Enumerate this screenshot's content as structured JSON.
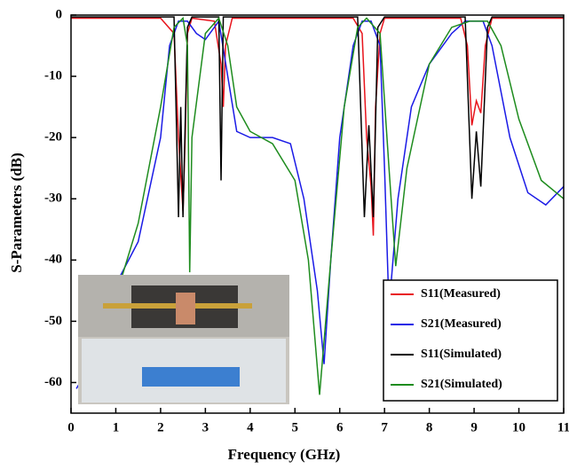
{
  "chart_data": {
    "type": "line",
    "xlabel": "Frequency (GHz)",
    "ylabel": "S-Parameters (dB)",
    "xlim": [
      0,
      11
    ],
    "xticks": [
      0,
      1,
      2,
      3,
      4,
      5,
      6,
      7,
      8,
      9,
      10,
      11
    ],
    "ylim": [
      -65,
      0
    ],
    "yticks": [
      0,
      -10,
      -20,
      -30,
      -40,
      -50,
      -60
    ],
    "grid": false,
    "legend": "lower right",
    "series": [
      {
        "name": "S11(Measured)",
        "color": "#e8141c",
        "x": [
          0,
          2.0,
          2.3,
          2.4,
          2.5,
          2.55,
          2.6,
          2.7,
          3.2,
          3.35,
          3.4,
          3.45,
          3.6,
          6.3,
          6.5,
          6.6,
          6.7,
          6.75,
          6.8,
          6.9,
          7.0,
          8.7,
          8.85,
          8.95,
          9.05,
          9.15,
          9.25,
          9.4,
          11
        ],
        "values": [
          -0.5,
          -0.5,
          -3,
          -20,
          -32,
          -20,
          -3,
          -0.5,
          -1,
          -8,
          -15,
          -5,
          -0.5,
          -0.5,
          -3,
          -20,
          -28,
          -36,
          -15,
          -3,
          -0.5,
          -0.5,
          -5,
          -18,
          -14,
          -16,
          -5,
          -0.5,
          -0.5
        ]
      },
      {
        "name": "S21(Measured)",
        "color": "#1a1ae6",
        "x": [
          0.12,
          0.2,
          0.5,
          1.0,
          1.5,
          2.0,
          2.2,
          2.4,
          2.6,
          2.8,
          3.0,
          3.3,
          3.5,
          3.7,
          4.0,
          4.5,
          4.9,
          5.2,
          5.5,
          5.65,
          5.8,
          6.0,
          6.3,
          6.5,
          6.7,
          6.9,
          7.0,
          7.1,
          7.3,
          7.6,
          8.0,
          8.5,
          8.8,
          9.2,
          9.4,
          9.8,
          10.2,
          10.6,
          11
        ],
        "values": [
          -61,
          -60,
          -52,
          -44,
          -37,
          -20,
          -5,
          -1,
          -1,
          -3,
          -4,
          -1,
          -10,
          -19,
          -20,
          -20,
          -21,
          -30,
          -45,
          -57,
          -40,
          -20,
          -5,
          -1,
          -1,
          -5,
          -25,
          -48,
          -30,
          -15,
          -8,
          -3,
          -1,
          -1,
          -5,
          -20,
          -29,
          -31,
          -28
        ]
      },
      {
        "name": "S11(Simulated)",
        "color": "#000000",
        "x": [
          0,
          2.3,
          2.4,
          2.45,
          2.5,
          2.6,
          2.7,
          3.3,
          3.35,
          3.4,
          6.4,
          6.55,
          6.65,
          6.75,
          6.85,
          7.0,
          8.8,
          8.95,
          9.05,
          9.15,
          9.3,
          9.4,
          11
        ],
        "values": [
          -0.3,
          -0.3,
          -33,
          -15,
          -33,
          -2,
          -0.3,
          -0.3,
          -27,
          -0.3,
          -0.3,
          -33,
          -18,
          -33,
          -2,
          -0.3,
          -0.3,
          -30,
          -19,
          -28,
          -2,
          -0.3,
          -0.3
        ]
      },
      {
        "name": "S21(Simulated)",
        "color": "#1e8c1e",
        "x": [
          1.0,
          1.5,
          2.0,
          2.3,
          2.5,
          2.6,
          2.65,
          2.7,
          3.0,
          3.3,
          3.5,
          3.7,
          4.0,
          4.5,
          5.0,
          5.3,
          5.55,
          5.8,
          6.1,
          6.4,
          6.6,
          6.9,
          7.1,
          7.25,
          7.5,
          8.0,
          8.5,
          8.9,
          9.3,
          9.6,
          10.0,
          10.5,
          11
        ],
        "values": [
          -46,
          -34,
          -15,
          -2,
          -0.5,
          -5,
          -42,
          -20,
          -3,
          -0.5,
          -5,
          -15,
          -19,
          -21,
          -27,
          -40,
          -62,
          -40,
          -15,
          -2,
          -0.5,
          -3,
          -25,
          -41,
          -25,
          -8,
          -2,
          -1,
          -1,
          -5,
          -17,
          -27,
          -30
        ]
      }
    ]
  }
}
